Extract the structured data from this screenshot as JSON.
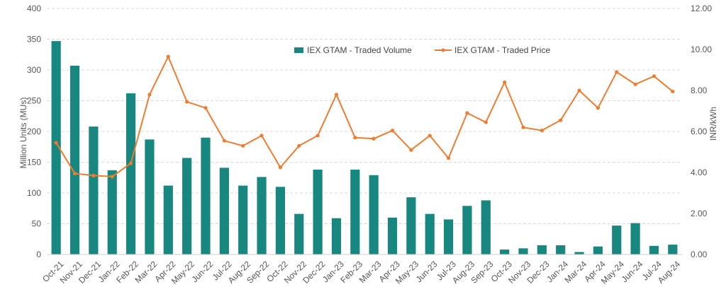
{
  "chart_data": {
    "type": "bar",
    "categories": [
      "Oct-21",
      "Nov-21",
      "Dec-21",
      "Jan-22",
      "Feb-22",
      "Mar-22",
      "Apr-22",
      "May-22",
      "Jun-22",
      "Jul-22",
      "Aug-22",
      "Sep-22",
      "Oct-22",
      "Nov-22",
      "Dec-22",
      "Jan-23",
      "Feb-23",
      "Mar-23",
      "Apr-23",
      "May-23",
      "Jun-23",
      "Jul-23",
      "Aug-23",
      "Sep-23",
      "Oct-23",
      "Nov-23",
      "Dec-23",
      "Jan-24",
      "Mar-24",
      "Apr-24",
      "May-24",
      "Jun-24",
      "Jul-24",
      "Aug-24"
    ],
    "series": [
      {
        "name": "IEX GTAM - Traded Volume",
        "type": "bar",
        "axis": "left",
        "color": "#17877f",
        "values": [
          347,
          307,
          208,
          137,
          262,
          187,
          112,
          157,
          190,
          141,
          112,
          126,
          110,
          66,
          138,
          59,
          138,
          129,
          60,
          93,
          66,
          57,
          79,
          88,
          8,
          10,
          15,
          15,
          4,
          13,
          47,
          51,
          14,
          16
        ]
      },
      {
        "name": "IEX GTAM - Traded Price",
        "type": "line",
        "axis": "right",
        "color": "#ed7d31",
        "values": [
          5.45,
          3.95,
          3.85,
          3.8,
          4.45,
          7.8,
          9.65,
          7.45,
          7.15,
          5.55,
          5.3,
          5.8,
          4.25,
          5.3,
          5.8,
          7.8,
          5.7,
          5.65,
          6.05,
          5.1,
          5.8,
          4.7,
          6.9,
          6.45,
          8.4,
          6.2,
          6.05,
          6.55,
          8.0,
          7.15,
          8.9,
          8.3,
          8.7,
          7.95
        ]
      }
    ],
    "ylabel": "Million Units (MUs)",
    "y2label": "INR/kWh",
    "ylim": [
      0,
      400
    ],
    "y2lim": [
      0,
      12
    ],
    "yticks": [
      "0",
      "50",
      "100",
      "150",
      "200",
      "250",
      "300",
      "350",
      "400"
    ],
    "y2ticks": [
      "0.00",
      "2.00",
      "4.00",
      "6.00",
      "8.00",
      "10.00",
      "12.00"
    ],
    "grid": true,
    "legend_position": "top-center"
  }
}
